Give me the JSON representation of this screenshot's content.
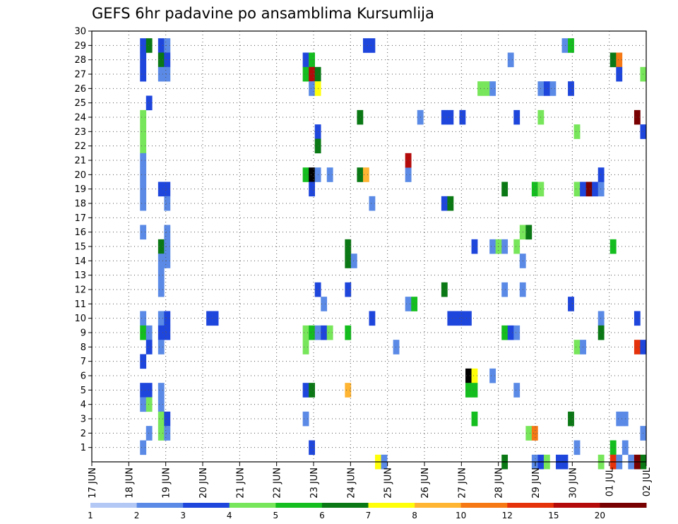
{
  "chart_data": {
    "type": "heatmap",
    "title": "GEFS 6hr padavine po ansamblima Kursumlija",
    "xlabel": "",
    "ylabel": "",
    "x_ticks": [
      "17 JUN",
      "18 JUN",
      "19 JUN",
      "20 JUN",
      "21 JUN",
      "22 JUN",
      "23 JUN",
      "24 JUN",
      "25 JUN",
      "26 JUN",
      "27 JUN",
      "28 JUN",
      "29 JUN",
      "30 JUN",
      "01 JUL",
      "02 JUL"
    ],
    "y_ticks": [
      1,
      2,
      3,
      4,
      5,
      6,
      7,
      8,
      9,
      10,
      11,
      12,
      13,
      14,
      15,
      16,
      17,
      18,
      19,
      20,
      21,
      22,
      23,
      24,
      25,
      26,
      27,
      28,
      29,
      30
    ],
    "ylim": [
      0,
      30
    ],
    "x_range_steps": [
      0,
      60
    ],
    "x_step_hours": 6,
    "grid": true,
    "colorbar": {
      "labels": [
        "1",
        "2",
        "3",
        "4",
        "5",
        "6",
        "7",
        "8",
        "10",
        "12",
        "15",
        "20"
      ],
      "colors": [
        "#b4c8f5",
        "#5a8ae6",
        "#1e46dc",
        "#78e65a",
        "#14be1e",
        "#0a7814",
        "#ffff0a",
        "#ffb432",
        "#f57814",
        "#e6320a",
        "#b40a0a",
        "#780000"
      ]
    },
    "cell_encoding": "[time_step, ensemble_member, color_class]",
    "cells": [
      [
        8,
        29,
        2
      ],
      [
        8,
        28,
        2
      ],
      [
        8,
        27,
        2
      ],
      [
        8,
        24,
        3
      ],
      [
        8,
        23,
        3
      ],
      [
        8,
        22,
        3
      ],
      [
        8,
        21,
        1
      ],
      [
        8,
        20,
        1
      ],
      [
        8,
        19,
        1
      ],
      [
        8,
        18,
        1
      ],
      [
        8,
        16,
        1
      ],
      [
        8,
        10,
        1
      ],
      [
        8,
        9,
        4
      ],
      [
        8,
        7,
        2
      ],
      [
        8,
        5,
        2
      ],
      [
        8,
        4,
        1
      ],
      [
        8,
        1,
        1
      ],
      [
        9,
        29,
        5
      ],
      [
        9,
        25,
        2
      ],
      [
        9,
        9,
        1
      ],
      [
        9,
        8,
        2
      ],
      [
        9,
        5,
        2
      ],
      [
        9,
        4,
        3
      ],
      [
        9,
        2,
        1
      ],
      [
        11,
        29,
        2
      ],
      [
        11,
        28,
        5
      ],
      [
        11,
        27,
        1
      ],
      [
        11,
        19,
        2
      ],
      [
        11,
        15,
        5
      ],
      [
        11,
        14,
        1
      ],
      [
        11,
        13,
        1
      ],
      [
        11,
        12,
        1
      ],
      [
        11,
        10,
        1
      ],
      [
        11,
        9,
        2
      ],
      [
        11,
        8,
        1
      ],
      [
        11,
        5,
        1
      ],
      [
        11,
        4,
        1
      ],
      [
        11,
        3,
        3
      ],
      [
        11,
        2,
        3
      ],
      [
        12,
        29,
        1
      ],
      [
        12,
        28,
        2
      ],
      [
        12,
        27,
        1
      ],
      [
        12,
        19,
        2
      ],
      [
        12,
        18,
        1
      ],
      [
        12,
        16,
        1
      ],
      [
        12,
        15,
        1
      ],
      [
        12,
        14,
        1
      ],
      [
        12,
        10,
        2
      ],
      [
        12,
        9,
        2
      ],
      [
        12,
        3,
        2
      ],
      [
        12,
        2,
        1
      ],
      [
        19,
        10,
        2
      ],
      [
        20,
        10,
        2
      ],
      [
        35,
        28,
        2
      ],
      [
        35,
        27,
        4
      ],
      [
        35,
        20,
        4
      ],
      [
        35,
        9,
        3
      ],
      [
        35,
        8,
        3
      ],
      [
        35,
        5,
        2
      ],
      [
        35,
        3,
        1
      ],
      [
        36,
        28,
        4
      ],
      [
        36,
        27,
        10
      ],
      [
        36,
        26,
        1
      ],
      [
        36,
        20,
        12
      ],
      [
        36,
        19,
        2
      ],
      [
        36,
        9,
        4
      ],
      [
        36,
        5,
        5
      ],
      [
        36,
        1,
        2
      ],
      [
        37,
        27,
        5
      ],
      [
        37,
        26,
        6
      ],
      [
        37,
        23,
        2
      ],
      [
        37,
        22,
        5
      ],
      [
        37,
        20,
        1
      ],
      [
        37,
        12,
        2
      ],
      [
        37,
        9,
        1
      ],
      [
        38,
        11,
        1
      ],
      [
        38,
        9,
        2
      ],
      [
        39,
        20,
        1
      ],
      [
        39,
        9,
        3
      ],
      [
        42,
        15,
        5
      ],
      [
        42,
        14,
        5
      ],
      [
        42,
        12,
        2
      ],
      [
        42,
        9,
        4
      ],
      [
        42,
        5,
        7
      ],
      [
        43,
        14,
        1
      ],
      [
        44,
        24,
        5
      ],
      [
        44,
        20,
        5
      ],
      [
        45,
        20,
        7
      ],
      [
        45,
        29,
        2
      ],
      [
        46,
        29,
        2
      ],
      [
        46,
        18,
        1
      ],
      [
        46,
        10,
        2
      ],
      [
        47,
        0,
        6
      ],
      [
        48,
        0,
        1
      ],
      [
        50,
        8,
        1
      ],
      [
        52,
        20,
        1
      ],
      [
        52,
        21,
        10
      ],
      [
        52,
        11,
        1
      ],
      [
        53,
        11,
        4
      ],
      [
        54,
        24,
        1
      ],
      [
        58,
        24,
        2
      ],
      [
        58,
        18,
        2
      ],
      [
        58,
        12,
        5
      ],
      [
        59,
        24,
        2
      ],
      [
        59,
        18,
        5
      ],
      [
        59,
        10,
        2
      ],
      [
        60,
        10,
        2
      ],
      [
        61,
        10,
        2
      ],
      [
        61,
        24,
        2
      ],
      [
        62,
        10,
        2
      ],
      [
        62,
        6,
        12
      ],
      [
        63,
        6,
        6
      ],
      [
        63,
        5,
        4
      ],
      [
        63,
        3,
        4
      ],
      [
        63,
        15,
        2
      ],
      [
        62,
        5,
        4
      ],
      [
        64,
        26,
        3
      ],
      [
        65,
        26,
        3
      ],
      [
        66,
        26,
        1
      ],
      [
        66,
        15,
        1
      ],
      [
        66,
        6,
        1
      ],
      [
        67,
        15,
        3
      ],
      [
        68,
        15,
        1
      ],
      [
        68,
        12,
        1
      ],
      [
        68,
        19,
        5
      ],
      [
        68,
        9,
        4
      ],
      [
        68,
        0,
        5
      ],
      [
        69,
        9,
        2
      ],
      [
        69,
        28,
        1
      ],
      [
        70,
        9,
        1
      ],
      [
        70,
        15,
        3
      ],
      [
        70,
        24,
        2
      ],
      [
        71,
        14,
        1
      ],
      [
        71,
        16,
        3
      ],
      [
        72,
        16,
        5
      ],
      [
        71,
        12,
        1
      ],
      [
        70,
        5,
        1
      ],
      [
        72,
        2,
        3
      ],
      [
        73,
        2,
        8
      ],
      [
        73,
        19,
        4
      ],
      [
        74,
        19,
        3
      ],
      [
        74,
        24,
        3
      ],
      [
        74,
        26,
        1
      ],
      [
        75,
        26,
        2
      ],
      [
        76,
        26,
        1
      ],
      [
        73,
        0,
        1
      ],
      [
        74,
        0,
        2
      ],
      [
        75,
        0,
        3
      ],
      [
        77,
        0,
        2
      ],
      [
        78,
        0,
        2
      ],
      [
        80,
        19,
        3
      ],
      [
        81,
        19,
        2
      ],
      [
        82,
        19,
        11
      ],
      [
        83,
        19,
        2
      ],
      [
        84,
        19,
        1
      ],
      [
        78,
        29,
        1
      ],
      [
        79,
        29,
        4
      ],
      [
        79,
        26,
        2
      ],
      [
        79,
        11,
        2
      ],
      [
        79,
        3,
        5
      ],
      [
        80,
        23,
        3
      ],
      [
        80,
        8,
        3
      ],
      [
        81,
        8,
        1
      ],
      [
        80,
        1,
        1
      ],
      [
        84,
        20,
        2
      ],
      [
        84,
        10,
        1
      ],
      [
        84,
        9,
        5
      ],
      [
        84,
        0,
        3
      ],
      [
        86,
        28,
        5
      ],
      [
        87,
        28,
        8
      ],
      [
        87,
        27,
        2
      ],
      [
        86,
        15,
        4
      ],
      [
        86,
        1,
        4
      ],
      [
        86,
        0,
        9
      ],
      [
        87,
        0,
        1
      ],
      [
        87,
        3,
        1
      ],
      [
        88,
        3,
        1
      ],
      [
        88,
        1,
        1
      ],
      [
        89,
        0,
        1
      ],
      [
        90,
        24,
        11
      ],
      [
        90,
        10,
        2
      ],
      [
        90,
        8,
        9
      ],
      [
        91,
        27,
        3
      ],
      [
        91,
        23,
        2
      ],
      [
        91,
        8,
        2
      ],
      [
        91,
        2,
        1
      ],
      [
        91,
        0,
        5
      ],
      [
        90,
        0,
        11
      ]
    ]
  }
}
